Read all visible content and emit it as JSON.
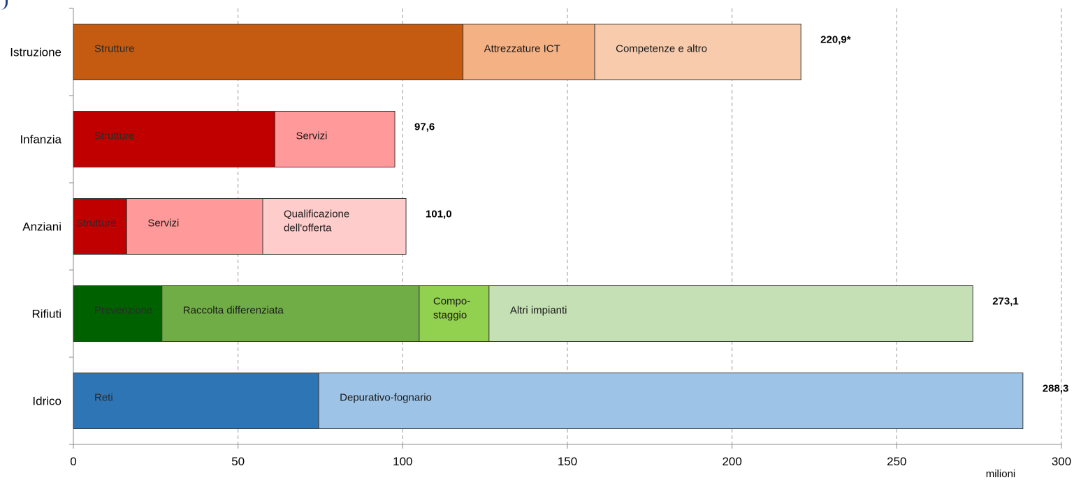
{
  "chart_data": {
    "type": "bar",
    "orientation": "horizontal",
    "stacked": true,
    "xlim": [
      0,
      300
    ],
    "xticks": [
      "0",
      "50",
      "100",
      "150",
      "200",
      "250",
      "300"
    ],
    "xtick_values": [
      0,
      50,
      100,
      150,
      200,
      250,
      300
    ],
    "xunit": "milioni",
    "grid": "vertical dashed",
    "categories": [
      "Istruzione",
      "Infanzia",
      "Anziani",
      "Rifiuti",
      "Idrico"
    ],
    "bars": [
      {
        "category": "Istruzione",
        "total_label": "220,9*",
        "segments": [
          {
            "label": "Strutture",
            "value": 118.3,
            "color": "#c55a11"
          },
          {
            "label": "Attrezzature ICT",
            "value": 40.0,
            "color": "#f4b183"
          },
          {
            "label": "Competenze e altro",
            "value": 62.6,
            "color": "#f8cbad"
          }
        ]
      },
      {
        "category": "Infanzia",
        "total_label": "97,6",
        "segments": [
          {
            "label": "Strutture",
            "value": 61.2,
            "color": "#c00000"
          },
          {
            "label": "Servizi",
            "value": 36.4,
            "color": "#ff999a"
          }
        ]
      },
      {
        "category": "Anziani",
        "total_label": "101,0",
        "segments": [
          {
            "label": "Strutture",
            "value": 16.2,
            "color": "#c00000"
          },
          {
            "label": "Servizi",
            "value": 41.3,
            "color": "#ff999a"
          },
          {
            "label": "Qualificazione dell'offerta",
            "value": 43.5,
            "color": "#ffcccc"
          }
        ]
      },
      {
        "category": "Rifiuti",
        "total_label": "273,1",
        "segments": [
          {
            "label": "Prevenzione",
            "value": 26.9,
            "color": "#006100"
          },
          {
            "label": "Raccolta differenziata",
            "value": 78.1,
            "color": "#70ad47"
          },
          {
            "label": "Compo-staggio",
            "value": 21.2,
            "color": "#92d050"
          },
          {
            "label": "Altri impianti",
            "value": 146.9,
            "color": "#c5e0b4"
          }
        ]
      },
      {
        "category": "Idrico",
        "total_label": "288,3",
        "segments": [
          {
            "label": "Reti",
            "value": 74.5,
            "color": "#2e75b6"
          },
          {
            "label": "Depurativo-fognario",
            "value": 213.8,
            "color": "#9dc3e6"
          }
        ]
      }
    ]
  }
}
